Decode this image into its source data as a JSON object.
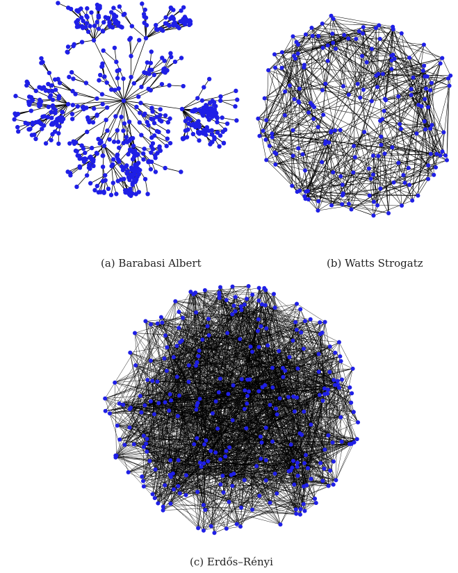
{
  "figure": {
    "panels": [
      {
        "id": "a",
        "caption": "(a) Barabasi Albert"
      },
      {
        "id": "b",
        "caption": "(b) Watts Strogatz"
      },
      {
        "id": "c",
        "caption": "(c)  Erdős–Rényi"
      }
    ],
    "colors": {
      "node": "#1f1fe6",
      "edge": "#000000",
      "background": "#ffffff"
    }
  }
}
